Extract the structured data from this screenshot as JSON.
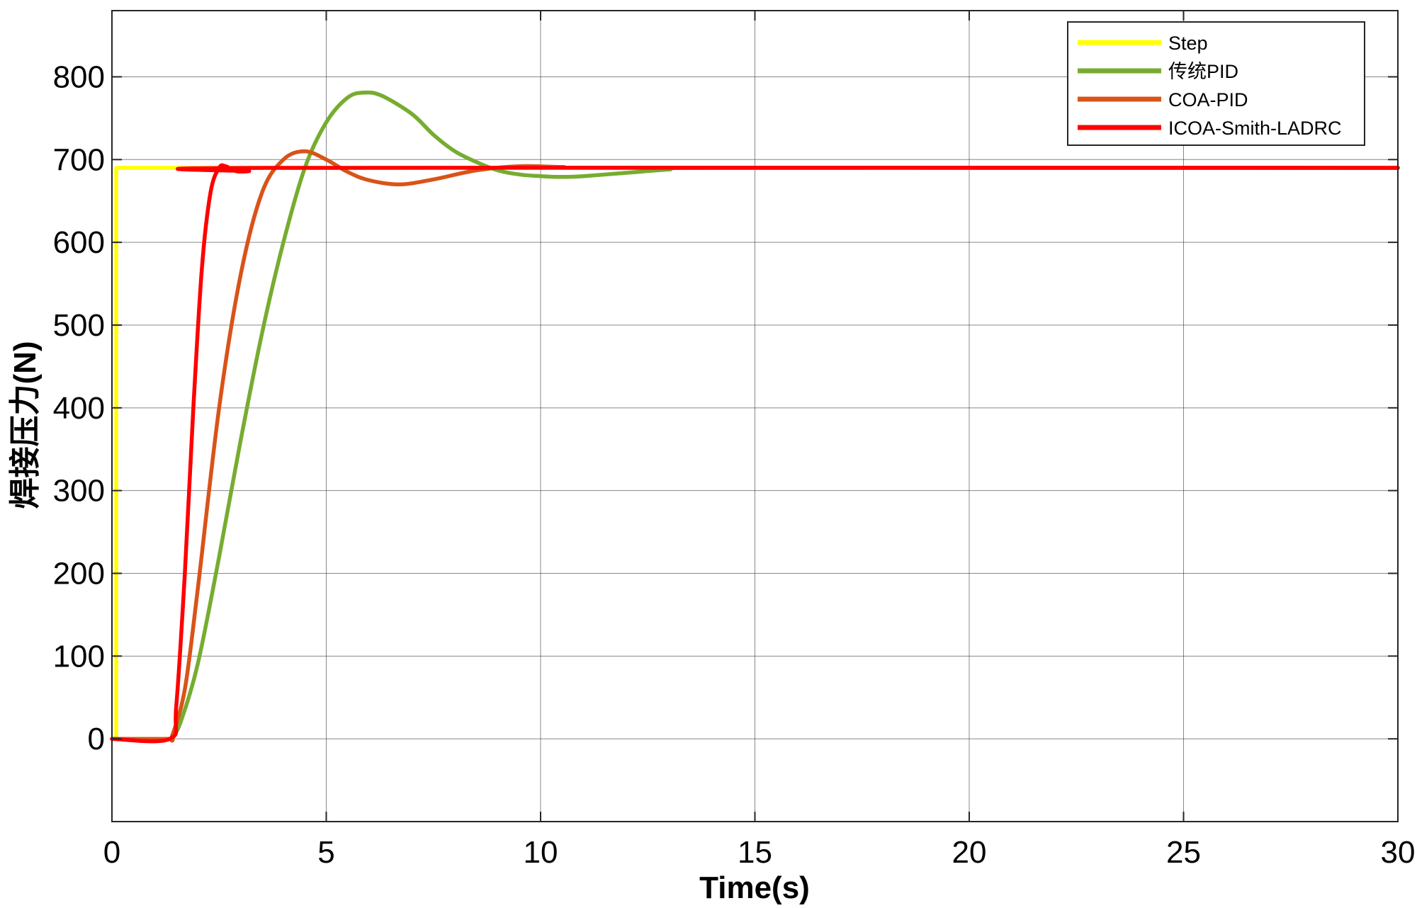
{
  "chart_data": {
    "type": "line",
    "title": "",
    "xlabel": "Time(s)",
    "ylabel": "焊接压力(N)",
    "xlim": [
      0,
      30
    ],
    "ylim": [
      -100,
      880
    ],
    "xticks": [
      0,
      5,
      10,
      15,
      20,
      25,
      30
    ],
    "yticks": [
      0,
      100,
      200,
      300,
      400,
      500,
      600,
      700,
      800
    ],
    "grid": true,
    "legend_position": "top-right",
    "series": [
      {
        "name": "Step",
        "color": "#ffff00",
        "points": [
          [
            0,
            0
          ],
          [
            0.1,
            0
          ],
          [
            0.1,
            690
          ],
          [
            30,
            690
          ]
        ]
      },
      {
        "name": "传统PID",
        "color": "#77ac30",
        "points": [
          [
            0,
            0
          ],
          [
            1.3,
            0
          ],
          [
            1.4,
            2
          ],
          [
            1.6,
            20
          ],
          [
            2.0,
            90
          ],
          [
            2.5,
            220
          ],
          [
            3.0,
            360
          ],
          [
            3.5,
            490
          ],
          [
            4.0,
            600
          ],
          [
            4.5,
            690
          ],
          [
            5.0,
            745
          ],
          [
            5.5,
            775
          ],
          [
            5.9,
            781
          ],
          [
            6.3,
            777
          ],
          [
            7.0,
            755
          ],
          [
            7.5,
            730
          ],
          [
            8.0,
            710
          ],
          [
            8.5,
            697
          ],
          [
            9.0,
            687
          ],
          [
            9.5,
            682
          ],
          [
            10.0,
            680
          ],
          [
            10.5,
            679
          ],
          [
            11.0,
            680
          ],
          [
            12.0,
            684
          ],
          [
            13.0,
            688
          ],
          [
            14.0,
            690
          ],
          [
            30,
            690
          ]
        ]
      },
      {
        "name": "COA-PID",
        "color": "#d95319",
        "points": [
          [
            0,
            0
          ],
          [
            1.3,
            0
          ],
          [
            1.4,
            3
          ],
          [
            1.7,
            60
          ],
          [
            2.0,
            180
          ],
          [
            2.5,
            400
          ],
          [
            3.0,
            560
          ],
          [
            3.5,
            660
          ],
          [
            4.0,
            700
          ],
          [
            4.5,
            710
          ],
          [
            5.0,
            700
          ],
          [
            5.5,
            685
          ],
          [
            6.0,
            675
          ],
          [
            6.7,
            670
          ],
          [
            7.5,
            676
          ],
          [
            8.5,
            687
          ],
          [
            9.5,
            692
          ],
          [
            10.5,
            691
          ],
          [
            12.0,
            690
          ],
          [
            30,
            690
          ]
        ]
      },
      {
        "name": "ICOA-Smith-LADRC",
        "color": "#ff0000",
        "points": [
          [
            0,
            0
          ],
          [
            1.35,
            0
          ],
          [
            1.5,
            40
          ],
          [
            1.7,
            200
          ],
          [
            1.9,
            400
          ],
          [
            2.1,
            570
          ],
          [
            2.3,
            660
          ],
          [
            2.5,
            690
          ],
          [
            2.65,
            692
          ],
          [
            2.9,
            686
          ],
          [
            3.2,
            686
          ],
          [
            3.6,
            690
          ],
          [
            30,
            690
          ]
        ]
      }
    ]
  }
}
